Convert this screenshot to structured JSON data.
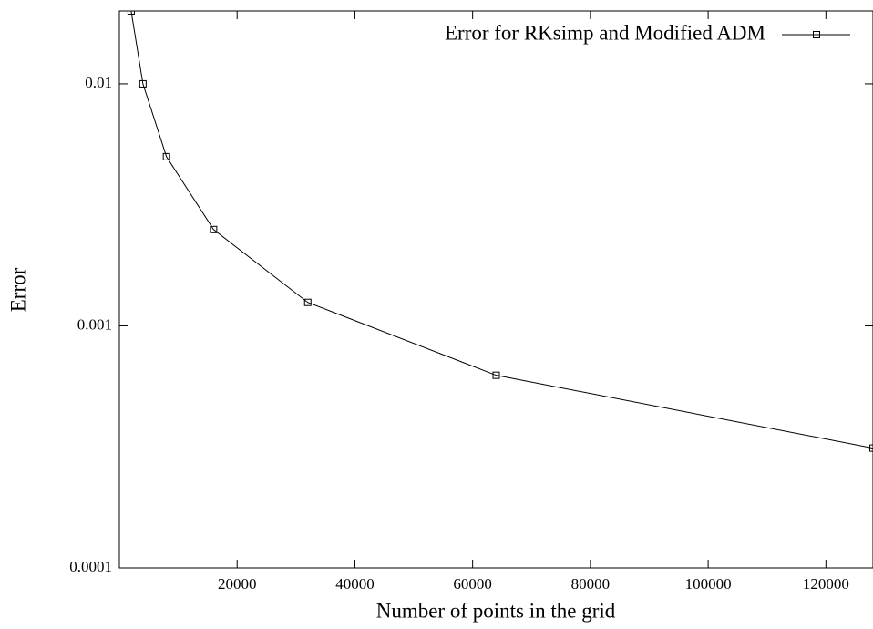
{
  "chart_data": {
    "type": "line",
    "xlabel": "Number of points in the grid",
    "ylabel": "Error",
    "x": [
      2000,
      4000,
      8000,
      16000,
      32000,
      64000,
      128000
    ],
    "series": [
      {
        "name": "Error for RKsimp and Modified ADM",
        "color": "#000000",
        "values": [
          0.02,
          0.01,
          0.005,
          0.0025,
          0.00125,
          0.000625,
          0.0003125
        ]
      }
    ],
    "xlim": [
      0,
      128000
    ],
    "xticks": [
      20000,
      40000,
      60000,
      80000,
      100000,
      120000
    ],
    "ylim": [
      0.0001,
      0.02
    ],
    "yticks": [
      0.0001,
      0.001,
      0.01
    ],
    "ylog": true,
    "legend": "top-right"
  }
}
